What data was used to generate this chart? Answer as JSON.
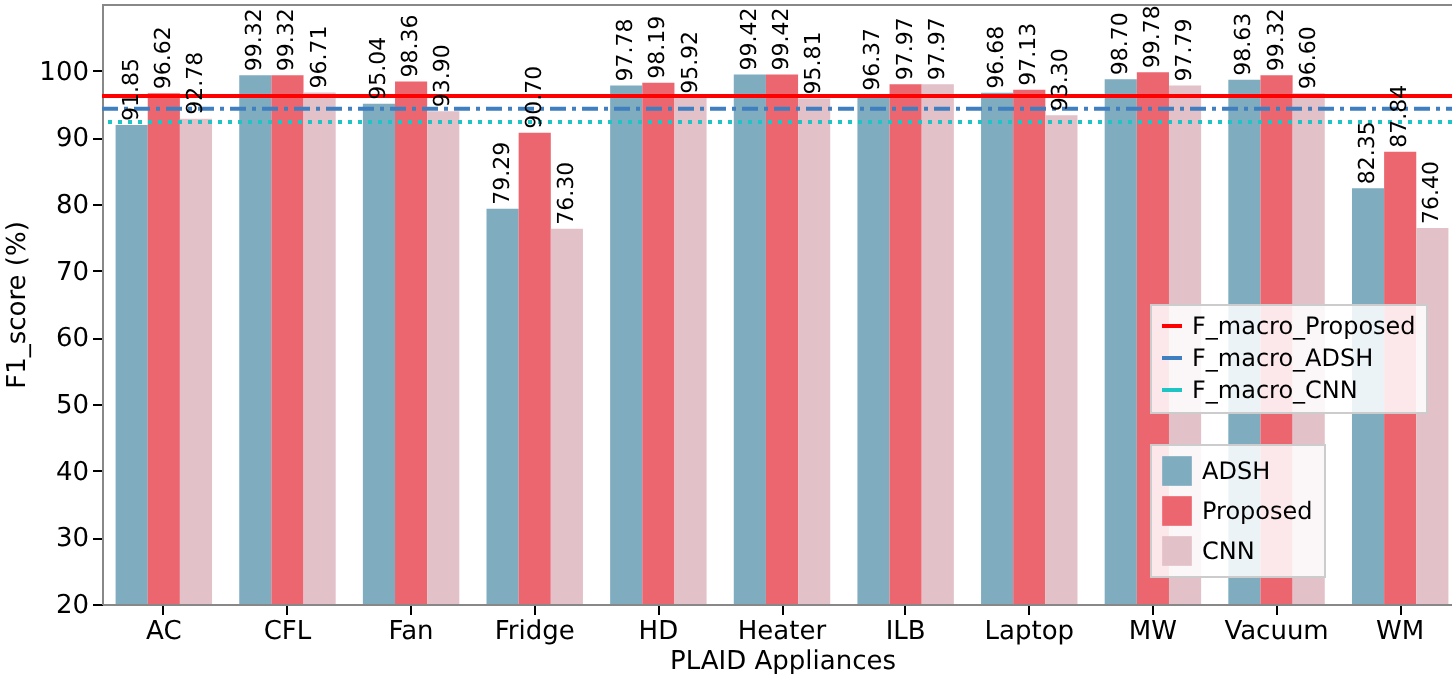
{
  "chart_data": {
    "type": "bar",
    "xlabel": "PLAID Appliances",
    "ylabel": "F1_score (%)",
    "categories": [
      "AC",
      "CFL",
      "Fan",
      "Fridge",
      "HD",
      "Heater",
      "ILB",
      "Laptop",
      "MW",
      "Vacuum",
      "WM"
    ],
    "series": [
      {
        "name": "ADSH",
        "color": "#7fadbf",
        "values": [
          91.85,
          99.32,
          95.04,
          79.29,
          97.78,
          99.42,
          96.37,
          96.68,
          98.7,
          98.63,
          82.35
        ],
        "value_labels": [
          "91.85",
          "99.32",
          "95.04",
          "79.29",
          "97.78",
          "99.42",
          "96.37",
          "96.68",
          "98.70",
          "98.63",
          "82.35"
        ]
      },
      {
        "name": "Proposed",
        "color": "#ec6670",
        "values": [
          96.62,
          99.32,
          98.36,
          90.7,
          98.19,
          99.42,
          97.97,
          97.13,
          99.78,
          99.32,
          87.84
        ],
        "value_labels": [
          "96.62",
          "99.32",
          "98.36",
          "90.70",
          "98.19",
          "99.42",
          "97.97",
          "97.13",
          "99.78",
          "99.32",
          "87.84"
        ]
      },
      {
        "name": "CNN",
        "color": "#e2c1c8",
        "values": [
          92.78,
          96.71,
          93.9,
          76.3,
          95.92,
          95.81,
          97.97,
          93.3,
          97.79,
          96.6,
          76.4
        ],
        "value_labels": [
          "92.78",
          "96.71",
          "93.90",
          "76.30",
          "95.92",
          "95.81",
          "97.97",
          "93.30",
          "97.79",
          "96.60",
          "76.40"
        ]
      }
    ],
    "ref_lines": [
      {
        "axis": "y",
        "value": 96.2,
        "label": "F_macro_Proposed",
        "color": "#ff0000",
        "line_style": "solid"
      },
      {
        "axis": "y",
        "value": 94.3,
        "label": "F_macro_ADSH",
        "color": "#3f7fbf",
        "line_style": "dashed"
      },
      {
        "axis": "y",
        "value": 92.3,
        "label": "F_macro_CNN",
        "color": "#1fc5c5",
        "line_style": "dotted"
      }
    ],
    "ylim": [
      20,
      110
    ],
    "yticks": [
      20,
      30,
      40,
      50,
      60,
      70,
      80,
      90,
      100
    ],
    "grid": false,
    "legend": "bottom right"
  }
}
